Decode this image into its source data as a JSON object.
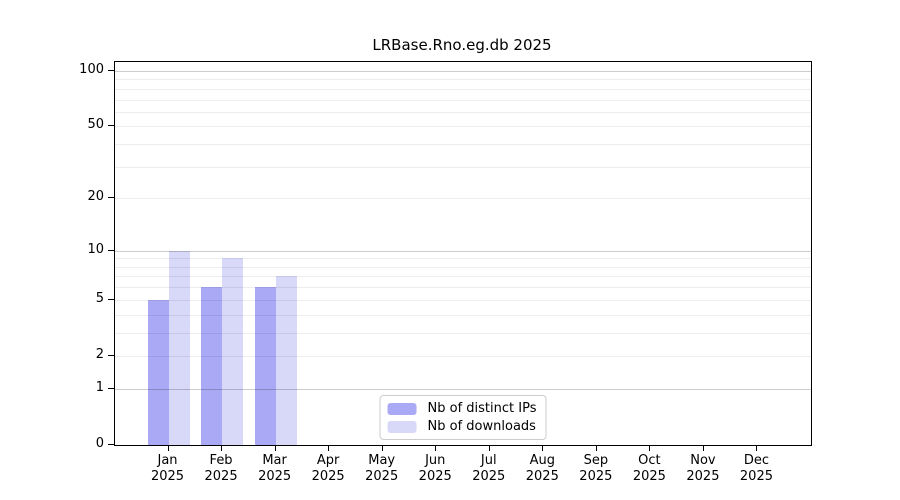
{
  "chart_data": {
    "type": "bar",
    "title": "LRBase.Rno.eg.db 2025",
    "categories": [
      "Jan",
      "Feb",
      "Mar",
      "Apr",
      "May",
      "Jun",
      "Jul",
      "Aug",
      "Sep",
      "Oct",
      "Nov",
      "Dec"
    ],
    "year": "2025",
    "series": [
      {
        "name": "Nb of distinct IPs",
        "color": "#a9a9f5",
        "values": [
          5,
          6,
          6,
          0,
          0,
          0,
          0,
          0,
          0,
          0,
          0,
          0
        ]
      },
      {
        "name": "Nb of downloads",
        "color": "#d8d8f8",
        "values": [
          10,
          9,
          7,
          0,
          0,
          0,
          0,
          0,
          0,
          0,
          0,
          0
        ]
      }
    ],
    "y_ticks": [
      0,
      1,
      2,
      5,
      10,
      20,
      50,
      100
    ],
    "ylim": [
      0,
      100
    ],
    "scale": "log1p",
    "grid": "on",
    "grid_minor_values": [
      2,
      3,
      4,
      5,
      6,
      7,
      8,
      9,
      20,
      30,
      40,
      50,
      60,
      70,
      80,
      90
    ],
    "grid_power_values": [
      1,
      10,
      100
    ],
    "legend_position": "bottom-center",
    "xlabel": "",
    "ylabel": "",
    "axis_color": "#000000",
    "background_color": "#ffffff"
  }
}
